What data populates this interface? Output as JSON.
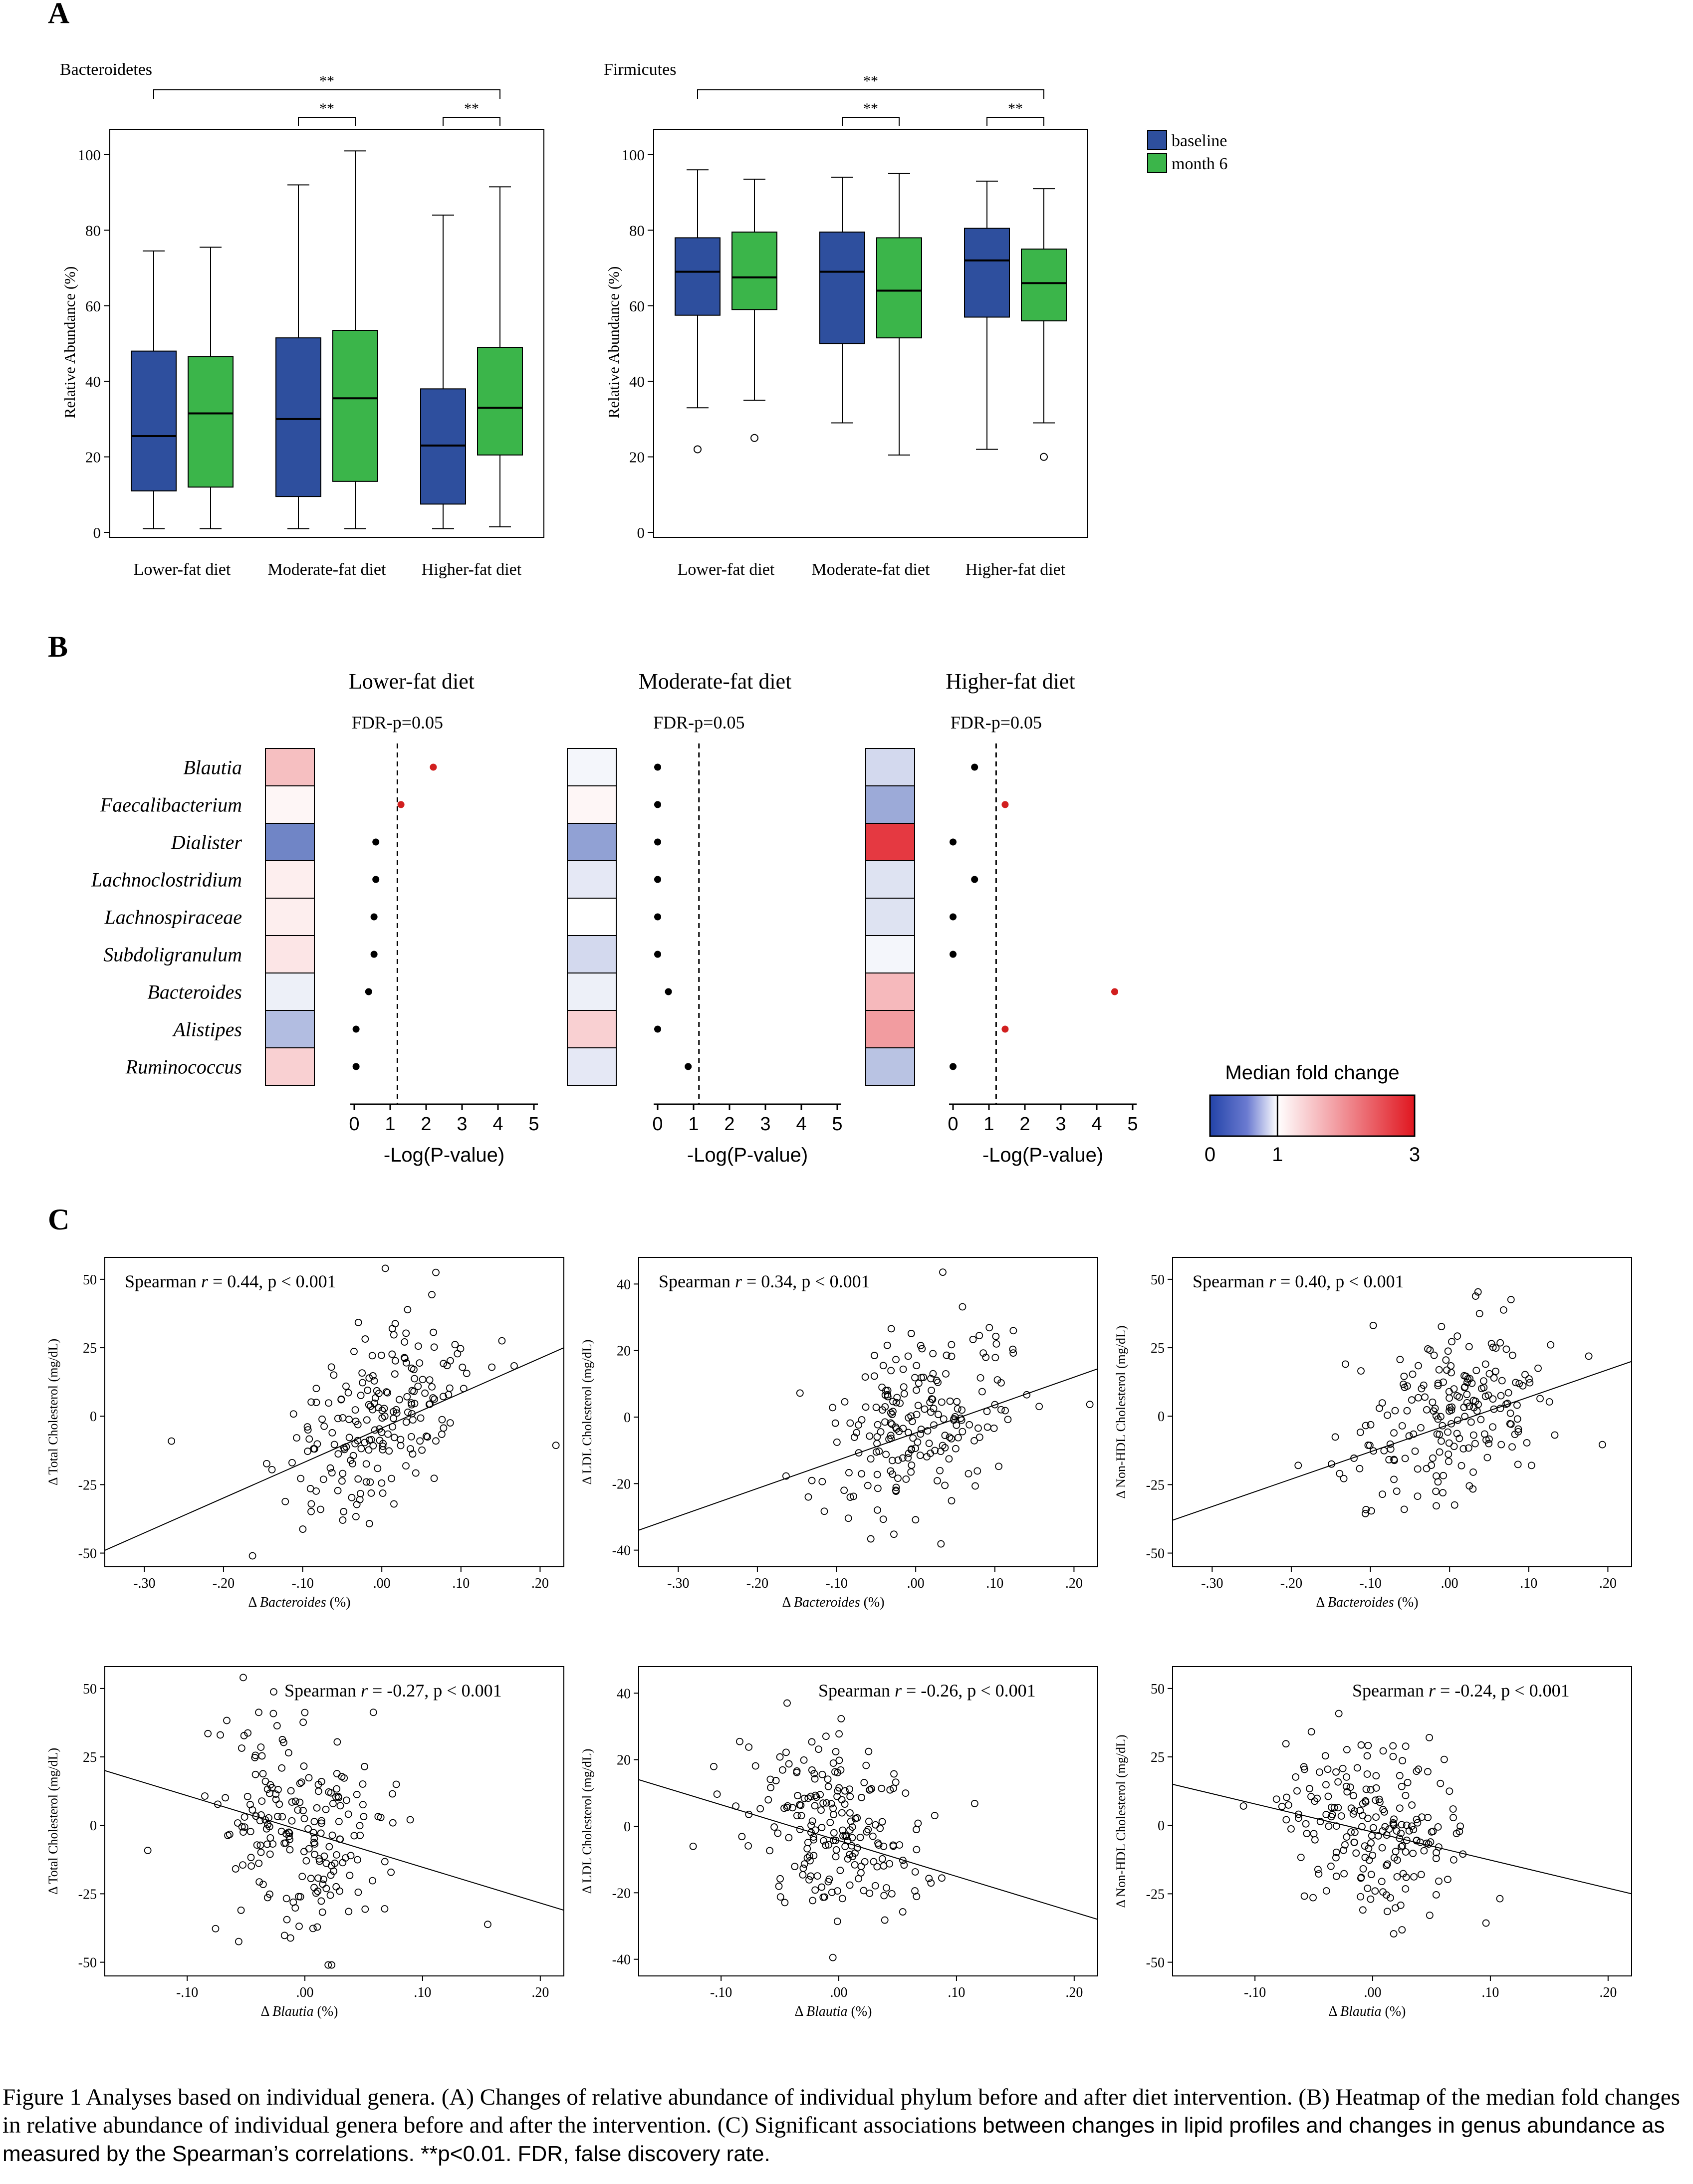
{
  "panels": {
    "A": "A",
    "B": "B",
    "C": "C"
  },
  "colors": {
    "baseline": "#2e4f9e",
    "month6": "#3bb54a",
    "sig": "#d11f1f",
    "heat_low": "#2343a8",
    "heat_mid": "#ffffff",
    "heat_high": "#e0161f"
  },
  "chart_data": [
    {
      "type": "box",
      "title": "Bacteroidetes",
      "ylabel": "Relative Abundance (%)",
      "ylim": [
        0,
        100
      ],
      "yticks": [
        0,
        20,
        40,
        60,
        80,
        100
      ],
      "categories": [
        "Lower-fat diet",
        "Moderate-fat diet",
        "Higher-fat diet"
      ],
      "series": [
        {
          "name": "baseline",
          "boxes": [
            {
              "min": 1,
              "q1": 11,
              "median": 25.5,
              "q3": 48,
              "max": 74.5,
              "outliers": []
            },
            {
              "min": 1,
              "q1": 9.5,
              "median": 30,
              "q3": 51.5,
              "max": 92,
              "outliers": []
            },
            {
              "min": 1,
              "q1": 7.5,
              "median": 23,
              "q3": 38,
              "max": 84,
              "outliers": []
            }
          ]
        },
        {
          "name": "month 6",
          "boxes": [
            {
              "min": 1,
              "q1": 12,
              "median": 31.5,
              "q3": 46.5,
              "max": 75.5,
              "outliers": []
            },
            {
              "min": 1,
              "q1": 13.5,
              "median": 35.5,
              "q3": 53.5,
              "max": 101,
              "outliers": []
            },
            {
              "min": 1.5,
              "q1": 20.5,
              "median": 33,
              "q3": 49,
              "max": 91.5,
              "outliers": []
            }
          ]
        }
      ],
      "significance": [
        {
          "from_cat": 0,
          "to_cat": 2,
          "label": "**"
        },
        {
          "from_cat": 1,
          "to_cat": 1,
          "label": "**"
        },
        {
          "from_cat": 2,
          "to_cat": 2,
          "label": "**"
        }
      ]
    },
    {
      "type": "box",
      "title": "Firmicutes",
      "ylabel": "Relative Abundance (%)",
      "ylim": [
        0,
        100
      ],
      "yticks": [
        0,
        20,
        40,
        60,
        80,
        100
      ],
      "categories": [
        "Lower-fat diet",
        "Moderate-fat diet",
        "Higher-fat diet"
      ],
      "legend": [
        "baseline",
        "month 6"
      ],
      "series": [
        {
          "name": "baseline",
          "boxes": [
            {
              "min": 33,
              "q1": 57.5,
              "median": 69,
              "q3": 78,
              "max": 96,
              "outliers": [
                22
              ]
            },
            {
              "min": 29,
              "q1": 50,
              "median": 69,
              "q3": 79.5,
              "max": 94,
              "outliers": []
            },
            {
              "min": 22,
              "q1": 57,
              "median": 72,
              "q3": 80.5,
              "max": 93,
              "outliers": []
            }
          ]
        },
        {
          "name": "month 6",
          "boxes": [
            {
              "min": 35,
              "q1": 59,
              "median": 67.5,
              "q3": 79.5,
              "max": 93.5,
              "outliers": [
                25
              ]
            },
            {
              "min": 20.5,
              "q1": 51.5,
              "median": 64,
              "q3": 78,
              "max": 95,
              "outliers": []
            },
            {
              "min": 29,
              "q1": 56,
              "median": 66,
              "q3": 75,
              "max": 91,
              "outliers": [
                20
              ]
            }
          ]
        }
      ],
      "significance": [
        {
          "from_cat": 0,
          "to_cat": 2,
          "label": "**"
        },
        {
          "from_cat": 1,
          "to_cat": 1,
          "label": "**"
        },
        {
          "from_cat": 2,
          "to_cat": 2,
          "label": "**"
        }
      ]
    },
    {
      "type": "heatmap",
      "genera": [
        "Blautia",
        "Faecalibacterium",
        "Dialister",
        "Lachnoclostridium",
        "Lachnospiraceae",
        "Subdoligranulum",
        "Bacteroides",
        "Alistipes",
        "Ruminococcus"
      ],
      "groups": [
        {
          "title": "Lower-fat diet",
          "threshold_label": "FDR-p=0.05",
          "threshold": 1.2,
          "fold_change": [
            1.55,
            1.08,
            0.35,
            1.15,
            1.15,
            1.22,
            0.92,
            0.65,
            1.4
          ],
          "neglog_p": [
            2.2,
            1.3,
            0.6,
            0.6,
            0.55,
            0.55,
            0.4,
            0.05,
            0.05
          ],
          "significant": [
            true,
            true,
            false,
            false,
            false,
            false,
            false,
            false,
            false
          ]
        },
        {
          "title": "Moderate-fat diet",
          "threshold_label": "FDR-p=0.05",
          "threshold": 1.15,
          "fold_change": [
            0.95,
            1.08,
            0.5,
            0.88,
            1.0,
            0.8,
            0.92,
            1.4,
            0.88
          ],
          "neglog_p": [
            0.0,
            0.0,
            0.0,
            0.0,
            0.0,
            0.0,
            0.3,
            0.0,
            0.85
          ],
          "significant": [
            false,
            false,
            false,
            false,
            false,
            false,
            false,
            false,
            false
          ]
        },
        {
          "title": "Higher-fat diet",
          "threshold_label": "FDR-p=0.05",
          "threshold": 1.2,
          "fold_change": [
            0.8,
            0.55,
            2.7,
            0.85,
            0.85,
            0.95,
            1.6,
            1.85,
            0.68
          ],
          "neglog_p": [
            0.6,
            1.45,
            0.0,
            0.6,
            0.0,
            0.0,
            4.5,
            1.45,
            0.0
          ],
          "significant": [
            false,
            true,
            false,
            false,
            false,
            false,
            true,
            true,
            false
          ]
        }
      ],
      "xlabel": "-Log(P-value)",
      "xticks": [
        0,
        1,
        2,
        3,
        4,
        5
      ],
      "colorbar": {
        "title": "Median fold change",
        "ticks": [
          0,
          1,
          3
        ]
      }
    },
    {
      "type": "scatter",
      "panels": [
        {
          "stat": "Spearman ",
          "r_sym": "r",
          "stat_rest": " = 0.44, p < 0.001",
          "ylabel": "Δ Total Cholesterol (mg/dL)",
          "xlabel_pre": "Δ ",
          "xlabel_it": "Bacteroides",
          "xlabel_post": " (%)",
          "xlim": [
            -0.35,
            0.23
          ],
          "ylim": [
            -55,
            58
          ],
          "xticks": [
            -0.3,
            -0.2,
            -0.1,
            0,
            0.1,
            0.2
          ],
          "xticklabels": [
            "-.30",
            "-.20",
            "-.10",
            ".00",
            ".10",
            ".20"
          ],
          "yticks": [
            -50,
            -25,
            0,
            25,
            50
          ],
          "fit": [
            [
              -0.35,
              -49
            ],
            [
              0.23,
              25
            ]
          ],
          "seed": 11,
          "slope": 128,
          "spread": 17,
          "xmean": 0.0,
          "xsd": 0.065,
          "n": 200
        },
        {
          "stat": "Spearman ",
          "r_sym": "r",
          "stat_rest": " = 0.34, p < 0.001",
          "ylabel": "Δ LDL Cholesterol (mg/dL)",
          "xlabel_pre": "Δ ",
          "xlabel_it": "Bacteroides",
          "xlabel_post": " (%)",
          "xlim": [
            -0.35,
            0.23
          ],
          "ylim": [
            -45,
            48
          ],
          "xticks": [
            -0.3,
            -0.2,
            -0.1,
            0,
            0.1,
            0.2
          ],
          "xticklabels": [
            "-.30",
            "-.20",
            "-.10",
            ".00",
            ".10",
            ".20"
          ],
          "yticks": [
            -40,
            -20,
            0,
            20,
            40
          ],
          "fit": [
            [
              -0.35,
              -34
            ],
            [
              0.23,
              14.5
            ]
          ],
          "seed": 23,
          "slope": 84,
          "spread": 14,
          "xmean": 0.0,
          "xsd": 0.065,
          "n": 200
        },
        {
          "stat": "Spearman ",
          "r_sym": "r",
          "stat_rest": " = 0.40, p < 0.001",
          "ylabel": "Δ Non-HDL Cholesterol (mg/dL)",
          "xlabel_pre": "Δ ",
          "xlabel_it": "Bacteroides",
          "xlabel_post": " (%)",
          "xlim": [
            -0.35,
            0.23
          ],
          "ylim": [
            -55,
            58
          ],
          "xticks": [
            -0.3,
            -0.2,
            -0.1,
            0,
            0.1,
            0.2
          ],
          "xticklabels": [
            "-.30",
            "-.20",
            "-.10",
            ".00",
            ".10",
            ".20"
          ],
          "yticks": [
            -50,
            -25,
            0,
            25,
            50
          ],
          "fit": [
            [
              -0.35,
              -38
            ],
            [
              0.23,
              20
            ]
          ],
          "seed": 37,
          "slope": 100,
          "spread": 15,
          "xmean": 0.0,
          "xsd": 0.065,
          "n": 200
        },
        {
          "stat": "Spearman ",
          "r_sym": "r",
          "stat_rest": " = -0.27, p < 0.001",
          "ylabel": "Δ Total Cholesterol (mg/dL)",
          "xlabel_pre": "Δ ",
          "xlabel_it": "Blautia",
          "xlabel_post": " (%)",
          "xlim": [
            -0.17,
            0.22
          ],
          "ylim": [
            -55,
            58
          ],
          "xticks": [
            -0.1,
            0,
            0.1,
            0.2
          ],
          "xticklabels": [
            "-.10",
            ".00",
            ".10",
            ".20"
          ],
          "yticks": [
            -50,
            -25,
            0,
            25,
            50
          ],
          "fit": [
            [
              -0.17,
              20
            ],
            [
              0.22,
              -31
            ]
          ],
          "seed": 53,
          "slope": -130,
          "spread": 18,
          "xmean": 0.0,
          "xsd": 0.04,
          "n": 200
        },
        {
          "stat": "Spearman ",
          "r_sym": "r",
          "stat_rest": " = -0.26, p < 0.001",
          "ylabel": "Δ LDL Cholesterol (mg/dL)",
          "xlabel_pre": "Δ ",
          "xlabel_it": "Blautia",
          "xlabel_post": " (%)",
          "xlim": [
            -0.17,
            0.22
          ],
          "ylim": [
            -45,
            48
          ],
          "xticks": [
            -0.1,
            0,
            0.1,
            0.2
          ],
          "xticklabels": [
            "-.10",
            ".00",
            ".10",
            ".20"
          ],
          "yticks": [
            -40,
            -20,
            0,
            20,
            40
          ],
          "fit": [
            [
              -0.17,
              14
            ],
            [
              0.22,
              -28
            ]
          ],
          "seed": 71,
          "slope": -108,
          "spread": 14,
          "xmean": 0.0,
          "xsd": 0.04,
          "n": 200
        },
        {
          "stat": "Spearman ",
          "r_sym": "r",
          "stat_rest": " = -0.24, p < 0.001",
          "ylabel": "Δ Non-HDL Cholesterol (mg/dL)",
          "xlabel_pre": "Δ ",
          "xlabel_it": "Blautia",
          "xlabel_post": " (%)",
          "xlim": [
            -0.17,
            0.22
          ],
          "ylim": [
            -55,
            58
          ],
          "xticks": [
            -0.1,
            0,
            0.1,
            0.2
          ],
          "xticklabels": [
            "-.10",
            ".00",
            ".10",
            ".20"
          ],
          "yticks": [
            -50,
            -25,
            0,
            25,
            50
          ],
          "fit": [
            [
              -0.17,
              15
            ],
            [
              0.22,
              -25
            ]
          ],
          "seed": 97,
          "slope": -103,
          "spread": 15,
          "xmean": 0.0,
          "xsd": 0.04,
          "n": 200
        }
      ]
    }
  ],
  "caption": {
    "lead": "Figure 1    Analyses based on individual genera. (A) Changes of relative abundance of individual phylum before and after diet intervention. (B) Heatmap of the median fold changes in relative abundance of individual genera before and after the intervention. (C) Significant associations ",
    "tail": "between changes in lipid profiles and changes in genus abundance as measured by the Spearman’s correlations. **p<0.01. FDR, false discovery rate."
  }
}
